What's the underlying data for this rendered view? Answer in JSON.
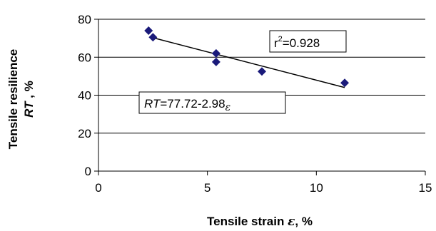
{
  "chart_data": {
    "type": "scatter",
    "title": "",
    "xlabel": {
      "prefix": "Tensile strain ",
      "symbol": "ε",
      "suffix": ", %"
    },
    "ylabel": {
      "line1": "Tensile resilience",
      "line2_var": "RT",
      "line2_suffix": " , %"
    },
    "xlim": [
      0,
      15
    ],
    "ylim": [
      0,
      80
    ],
    "xticks": [
      0,
      5,
      10,
      15
    ],
    "yticks": [
      0,
      20,
      40,
      60,
      80
    ],
    "grid": {
      "x": false,
      "y": true
    },
    "marker": {
      "shape": "diamond",
      "color": "#1a1a7a"
    },
    "points": [
      {
        "x": 2.3,
        "y": 74.0
      },
      {
        "x": 2.5,
        "y": 70.5
      },
      {
        "x": 5.4,
        "y": 62.0
      },
      {
        "x": 5.4,
        "y": 57.5
      },
      {
        "x": 7.5,
        "y": 52.5
      },
      {
        "x": 11.3,
        "y": 46.5
      }
    ],
    "trendline": {
      "x_start": 2.4,
      "x_end": 11.3,
      "intercept": 77.72,
      "slope": -2.98
    },
    "annotations": {
      "r2": {
        "base": "r",
        "sup": "2",
        "rest": "=0.928"
      },
      "equation": {
        "var": "RT",
        "mid": "=77.72-2.98",
        "symbol": "ε"
      }
    }
  }
}
